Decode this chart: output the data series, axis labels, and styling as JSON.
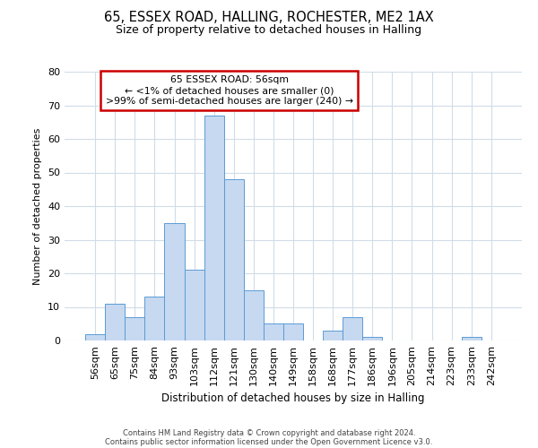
{
  "title": "65, ESSEX ROAD, HALLING, ROCHESTER, ME2 1AX",
  "subtitle": "Size of property relative to detached houses in Halling",
  "xlabel": "Distribution of detached houses by size in Halling",
  "ylabel": "Number of detached properties",
  "bar_labels": [
    "56sqm",
    "65sqm",
    "75sqm",
    "84sqm",
    "93sqm",
    "103sqm",
    "112sqm",
    "121sqm",
    "130sqm",
    "140sqm",
    "149sqm",
    "158sqm",
    "168sqm",
    "177sqm",
    "186sqm",
    "196sqm",
    "205sqm",
    "214sqm",
    "223sqm",
    "233sqm",
    "242sqm"
  ],
  "bar_values": [
    2,
    11,
    7,
    13,
    35,
    21,
    67,
    48,
    15,
    5,
    5,
    0,
    3,
    7,
    1,
    0,
    0,
    0,
    0,
    1,
    0
  ],
  "bar_color": "#c6d9f0",
  "bar_edge_color": "#5b9bd5",
  "ylim": [
    0,
    80
  ],
  "yticks": [
    0,
    10,
    20,
    30,
    40,
    50,
    60,
    70,
    80
  ],
  "annotation_title": "65 ESSEX ROAD: 56sqm",
  "annotation_line1": "← <1% of detached houses are smaller (0)",
  "annotation_line2": ">99% of semi-detached houses are larger (240) →",
  "annotation_box_color": "#ffffff",
  "annotation_border_color": "#cc0000",
  "footer_line1": "Contains HM Land Registry data © Crown copyright and database right 2024.",
  "footer_line2": "Contains public sector information licensed under the Open Government Licence v3.0.",
  "grid_color": "#d0dce8",
  "background_color": "#ffffff"
}
